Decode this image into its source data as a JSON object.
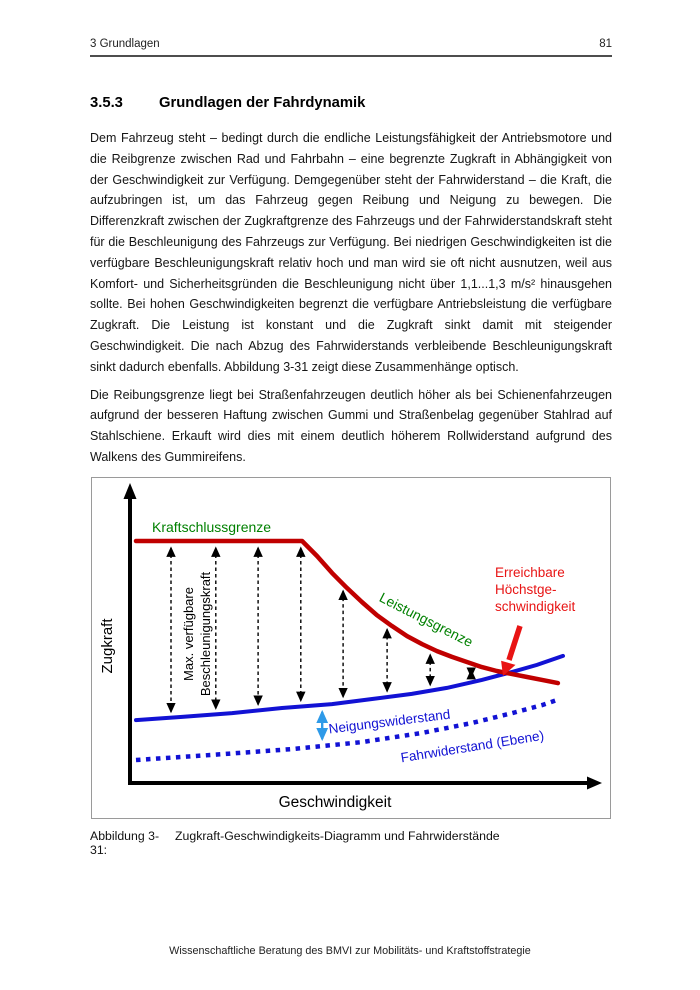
{
  "header": {
    "left": "3 Grundlagen",
    "page_number": "81"
  },
  "section": {
    "number": "3.5.3",
    "title": "Grundlagen der Fahrdynamik"
  },
  "paragraphs": {
    "p1": "Dem Fahrzeug steht – bedingt durch die endliche Leistungsfähigkeit der Antriebsmotore und die Reibgrenze zwischen Rad und Fahrbahn – eine begrenzte Zugkraft in Abhängigkeit von der Geschwindigkeit zur Verfügung. Demgegenüber steht der Fahrwiderstand – die Kraft, die aufzubringen ist, um das Fahrzeug gegen Reibung und Neigung zu bewegen. Die Differenzkraft zwischen der Zugkraftgrenze des Fahrzeugs und der Fahrwiderstandskraft steht für die Beschleunigung des Fahrzeugs zur Verfügung. Bei niedrigen Geschwindigkeiten ist die verfügbare Beschleunigungskraft relativ hoch und man wird sie oft nicht ausnutzen, weil aus Komfort- und Sicherheitsgründen die Beschleunigung nicht über 1,1...1,3 m/s² hinausgehen sollte. Bei hohen Geschwindigkeiten begrenzt die verfügbare Antriebsleistung die verfügbare Zugkraft. Die Leistung ist konstant und die Zugkraft sinkt damit mit steigender Geschwindigkeit. Die nach Abzug des Fahrwiderstands verbleibende Beschleunigungskraft sinkt dadurch ebenfalls. Abbildung 3-31 zeigt diese Zusammenhänge optisch.",
    "p2": "Die Reibungsgrenze liegt bei Straßenfahrzeugen deutlich höher als bei Schienenfahrzeugen aufgrund der besseren Haftung zwischen Gummi und Straßenbelag gegenüber Stahlrad auf Stahlschiene. Erkauft wird dies mit einem deutlich höherem Rollwiderstand aufgrund des Walkens des Gummireifens."
  },
  "figure": {
    "caption_label": "Abbildung 3-31:",
    "caption_text": "Zugkraft-Geschwindigkeits-Diagramm und Fahrwiderstände"
  },
  "footer": {
    "text": "Wissenschaftliche Beratung des BMVI zur Mobilitäts- und Kraftstoffstrategie"
  },
  "chart_data": {
    "type": "line",
    "title": "",
    "xlabel": "Geschwindigkeit",
    "ylabel": "Zugkraft",
    "axes_note": "qualitative diagram, no numeric ticks or gridlines shown; values below are percent of plot area (x: 0-100 left to right, y: 0-100 bottom to top)",
    "legend_position": "labels drawn on curves",
    "series": [
      {
        "name": "Zugkraftgrenze (Kraftschlussgrenze / Leistungsgrenze)",
        "color": "#c00000",
        "style": "solid",
        "points": [
          [
            0,
            100
          ],
          [
            38.9,
            100
          ],
          [
            42.4,
            93.8
          ],
          [
            45.9,
            86.8
          ],
          [
            49.4,
            80.6
          ],
          [
            52.9,
            74.8
          ],
          [
            56.4,
            69.4
          ],
          [
            59.9,
            64.9
          ],
          [
            63.5,
            60.7
          ],
          [
            67.0,
            57.4
          ],
          [
            70.5,
            54.5
          ],
          [
            74.0,
            52.1
          ],
          [
            77.5,
            50.0
          ],
          [
            81.0,
            47.9
          ],
          [
            84.5,
            46.3
          ],
          [
            88.1,
            45.0
          ],
          [
            91.6,
            43.8
          ],
          [
            95.1,
            42.6
          ],
          [
            98.8,
            41.3
          ]
        ]
      },
      {
        "name": "Fahrwiderstand mit Neigungswiderstand",
        "color": "#1212d4",
        "style": "solid",
        "points": [
          [
            0,
            26.0
          ],
          [
            10.8,
            27.3
          ],
          [
            22.5,
            28.9
          ],
          [
            34.2,
            31.0
          ],
          [
            45.9,
            32.6
          ],
          [
            55.3,
            34.7
          ],
          [
            64.6,
            36.8
          ],
          [
            72.8,
            39.3
          ],
          [
            81.0,
            42.6
          ],
          [
            88.1,
            45.9
          ],
          [
            93.9,
            48.8
          ],
          [
            100,
            52.5
          ]
        ]
      },
      {
        "name": "Fahrwiderstand (Ebene)",
        "color": "#1212d4",
        "style": "dotted",
        "points": [
          [
            0,
            9.5
          ],
          [
            17.8,
            11.6
          ],
          [
            36.5,
            14.0
          ],
          [
            52.9,
            16.9
          ],
          [
            67.0,
            20.7
          ],
          [
            78.7,
            24.8
          ],
          [
            88.1,
            28.9
          ],
          [
            95.1,
            32.2
          ],
          [
            99.3,
            34.7
          ]
        ]
      }
    ],
    "acceleration_arrows_x": [
      8.2,
      18.7,
      28.6,
      38.6,
      48.5,
      58.8,
      68.9,
      78.5
    ],
    "neigung_arrow_x": 43.6,
    "colors": {
      "accent_red": "#e81414",
      "curve_red": "#c00000",
      "curve_blue": "#1212d4",
      "label_green": "#008000",
      "arrow_cyan": "#2e9ae8"
    },
    "labels": {
      "kraftschlussgrenze": {
        "text": "Kraftschlussgrenze",
        "color": "#008000"
      },
      "leistungsgrenze": {
        "text": "Leistungsgrenze",
        "color": "#008000"
      },
      "max_beschleunigung": {
        "lines": [
          "Max. verfügbare",
          "Beschleunigungskraft"
        ],
        "color": "#000000"
      },
      "erreichbare": {
        "lines": [
          "Erreichbare",
          "Höchstge-",
          "schwindigkeit"
        ],
        "color": "#e81414"
      },
      "neigungswiderstand": {
        "text": "Neigungswiderstand",
        "color": "#1212d4"
      },
      "fahrwiderstand_ebene": {
        "text": "Fahrwiderstand (Ebene)",
        "color": "#1212d4"
      }
    }
  }
}
